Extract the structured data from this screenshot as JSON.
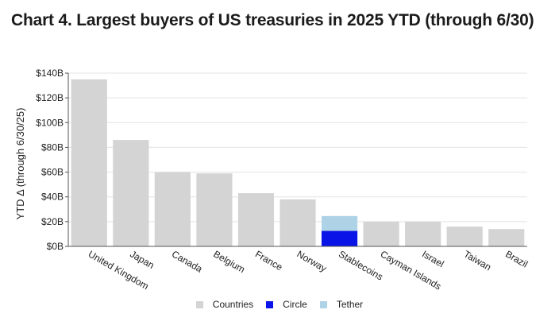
{
  "title": "Chart 4. Largest buyers of US treasuries in 2025 YTD (through 6/30)",
  "colors": {
    "countries": "#d4d4d4",
    "circle": "#0a14e6",
    "tether": "#aed2e6",
    "grid": "#e3e3e3",
    "axis": "#555555"
  },
  "chart_data": {
    "type": "bar",
    "stacked": true,
    "title": "Chart 4. Largest buyers of US treasuries in 2025 YTD (through 6/30)",
    "xlabel": "",
    "ylabel": "YTD Δ (through 6/30/25)",
    "ylim": [
      0,
      140
    ],
    "y_unit": "B USD",
    "yticks": [
      "$0B",
      "$20B",
      "$40B",
      "$60B",
      "$80B",
      "$100B",
      "$120B",
      "$140B"
    ],
    "grid": true,
    "legend_position": "bottom",
    "categories": [
      "United Kingdom",
      "Japan",
      "Canada",
      "Belgium",
      "France",
      "Norway",
      "Stablecoins",
      "Cayman Islands",
      "Israel",
      "Taiwan",
      "Brazil"
    ],
    "series": [
      {
        "name": "Countries",
        "color": "#d4d4d4",
        "values": [
          135,
          86,
          60,
          59,
          43,
          38,
          0,
          20,
          20,
          16,
          14
        ]
      },
      {
        "name": "Circle",
        "color": "#0a14e6",
        "values": [
          0,
          0,
          0,
          0,
          0,
          0,
          12.5,
          0,
          0,
          0,
          0
        ]
      },
      {
        "name": "Tether",
        "color": "#aed2e6",
        "values": [
          0,
          0,
          0,
          0,
          0,
          0,
          12,
          0,
          0,
          0,
          0
        ]
      }
    ]
  }
}
